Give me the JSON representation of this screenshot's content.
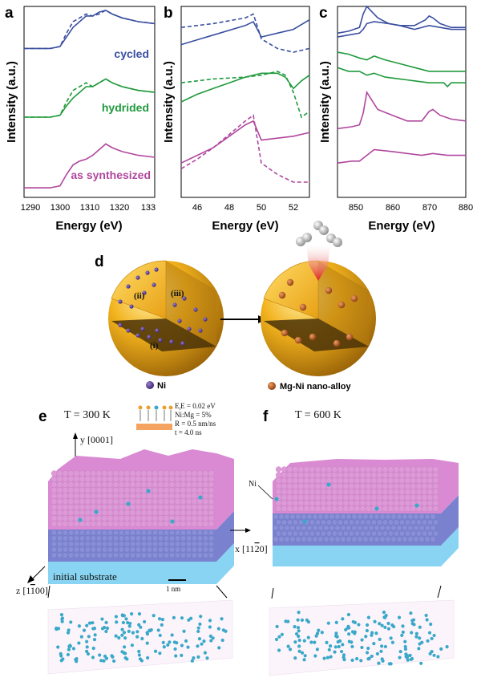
{
  "panels": {
    "a": "a",
    "b": "b",
    "c": "c",
    "d": "d",
    "e": "e",
    "f": "f"
  },
  "colors": {
    "cycled": "#3a4fa0",
    "hydrided": "#1f9a3c",
    "as_synth": "#b0479e",
    "shell": "#f0b020",
    "ni": "#5a3a9c",
    "mgni": "#c06020",
    "mg_atom": "#de9ad8",
    "substrate_atom": "#8a90d8",
    "substrate": "#88d4f2",
    "ni_atom": "#3aa8c8"
  },
  "chart_data": [
    {
      "panel": "a",
      "type": "line",
      "xlabel": "Energy (eV)",
      "ylabel": "Intensity (a.u.)",
      "xticks": [
        "1290",
        "1300",
        "1310",
        "1320",
        "133"
      ],
      "xlim": [
        1290,
        1330
      ],
      "series": [
        {
          "name": "cycled",
          "style": "solid",
          "x": [
            1290,
            1298,
            1301,
            1303,
            1305,
            1307,
            1309,
            1311,
            1313,
            1315,
            1317,
            1320,
            1325,
            1330
          ],
          "y": [
            0.78,
            0.78,
            0.79,
            0.84,
            0.89,
            0.92,
            0.95,
            0.95,
            0.97,
            0.98,
            0.96,
            0.94,
            0.92,
            0.91
          ]
        },
        {
          "name": "cycled-dashed",
          "style": "dashed",
          "x": [
            1290,
            1298,
            1301,
            1303,
            1305,
            1307,
            1309,
            1311,
            1313,
            1315,
            1317,
            1320,
            1325,
            1330
          ],
          "y": [
            0.78,
            0.78,
            0.79,
            0.86,
            0.92,
            0.94,
            0.96,
            0.95,
            0.96,
            0.98,
            0.96,
            0.94,
            0.92,
            0.91
          ]
        },
        {
          "name": "hydrided",
          "style": "solid",
          "x": [
            1290,
            1298,
            1301,
            1303,
            1305,
            1307,
            1309,
            1311,
            1313,
            1315,
            1317,
            1320,
            1325,
            1330
          ],
          "y": [
            0.42,
            0.42,
            0.43,
            0.48,
            0.52,
            0.55,
            0.58,
            0.58,
            0.6,
            0.62,
            0.6,
            0.58,
            0.56,
            0.55
          ]
        },
        {
          "name": "hydrided-dashed",
          "style": "dashed",
          "x": [
            1290,
            1298,
            1301,
            1303,
            1305,
            1307,
            1309,
            1311,
            1313,
            1315,
            1317,
            1320,
            1325,
            1330
          ],
          "y": [
            0.42,
            0.42,
            0.43,
            0.5,
            0.56,
            0.58,
            0.6,
            0.58,
            0.6,
            0.62,
            0.6,
            0.58,
            0.56,
            0.55
          ]
        },
        {
          "name": "as synthesized",
          "style": "solid",
          "x": [
            1290,
            1298,
            1301,
            1303,
            1305,
            1307,
            1309,
            1311,
            1313,
            1315,
            1317,
            1320,
            1325,
            1330
          ],
          "y": [
            0.05,
            0.05,
            0.06,
            0.12,
            0.17,
            0.19,
            0.2,
            0.22,
            0.25,
            0.28,
            0.26,
            0.24,
            0.22,
            0.21
          ]
        }
      ],
      "labels": [
        "cycled",
        "hydrided",
        "as synthesized"
      ]
    },
    {
      "panel": "b",
      "type": "line",
      "xlabel": "Energy (eV)",
      "ylabel": "Intensity (a.u.)",
      "xticks": [
        "46",
        "48",
        "50",
        "52"
      ],
      "xlim": [
        45,
        53
      ],
      "series": [
        {
          "name": "cycled",
          "style": "solid",
          "x": [
            45,
            47,
            49,
            49.5,
            50,
            51,
            52,
            53
          ],
          "y": [
            0.8,
            0.85,
            0.9,
            0.92,
            0.84,
            0.86,
            0.88,
            0.93
          ]
        },
        {
          "name": "cycled-dashed",
          "style": "dashed",
          "x": [
            45,
            47,
            49,
            49.5,
            50,
            51,
            52,
            53
          ],
          "y": [
            0.89,
            0.91,
            0.94,
            0.96,
            0.83,
            0.78,
            0.76,
            0.78
          ]
        },
        {
          "name": "hydrided",
          "style": "solid",
          "x": [
            45,
            46,
            47,
            48,
            49,
            50,
            51,
            51.5,
            52,
            52.5,
            53
          ],
          "y": [
            0.5,
            0.54,
            0.57,
            0.6,
            0.63,
            0.65,
            0.65,
            0.63,
            0.57,
            0.61,
            0.64
          ]
        },
        {
          "name": "hydrided-dashed",
          "style": "dashed",
          "x": [
            45,
            47,
            49,
            50,
            51,
            51.5,
            52,
            52.5,
            53
          ],
          "y": [
            0.6,
            0.62,
            0.63,
            0.64,
            0.66,
            0.64,
            0.55,
            0.42,
            0.45
          ]
        },
        {
          "name": "as synthesized",
          "style": "solid",
          "x": [
            45,
            46,
            47,
            48,
            49,
            49.5,
            50,
            51,
            52,
            53
          ],
          "y": [
            0.18,
            0.22,
            0.26,
            0.32,
            0.38,
            0.4,
            0.3,
            0.31,
            0.32,
            0.34
          ]
        },
        {
          "name": "as synthesized-dashed",
          "style": "dashed",
          "x": [
            45,
            46,
            47,
            48,
            49,
            49.5,
            50,
            51,
            52,
            53
          ],
          "y": [
            0.15,
            0.2,
            0.26,
            0.33,
            0.4,
            0.43,
            0.18,
            0.12,
            0.08,
            0.08
          ]
        }
      ]
    },
    {
      "panel": "c",
      "type": "line",
      "xlabel": "Energy (eV)",
      "ylabel": "Intensity (a.u.)",
      "xticks": [
        "850",
        "860",
        "870",
        "880"
      ],
      "xlim": [
        845,
        880
      ],
      "series": [
        {
          "name": "cycled",
          "style": "solid",
          "x": [
            845,
            848,
            851,
            852,
            853,
            854,
            856,
            859,
            862,
            866,
            869,
            870,
            871,
            873,
            876,
            880
          ],
          "y": [
            0.86,
            0.87,
            0.89,
            0.96,
            1.0,
            0.98,
            0.94,
            0.91,
            0.9,
            0.9,
            0.93,
            0.95,
            0.94,
            0.91,
            0.89,
            0.89
          ]
        },
        {
          "name": "cycled-2",
          "style": "solid",
          "x": [
            845,
            848,
            851,
            852,
            853,
            855,
            859,
            862,
            866,
            870,
            873,
            876,
            880
          ],
          "y": [
            0.84,
            0.85,
            0.86,
            0.88,
            0.91,
            0.92,
            0.91,
            0.9,
            0.88,
            0.9,
            0.89,
            0.88,
            0.88
          ]
        },
        {
          "name": "hydrided",
          "style": "solid",
          "x": [
            845,
            848,
            851,
            853,
            855,
            858,
            862,
            866,
            870,
            874,
            876,
            880
          ],
          "y": [
            0.76,
            0.75,
            0.73,
            0.72,
            0.74,
            0.72,
            0.7,
            0.68,
            0.66,
            0.66,
            0.66,
            0.66
          ]
        },
        {
          "name": "hydrided-2",
          "style": "solid",
          "x": [
            845,
            848,
            851,
            853,
            855,
            858,
            862,
            866,
            870,
            874,
            875,
            876,
            880
          ],
          "y": [
            0.68,
            0.66,
            0.66,
            0.64,
            0.65,
            0.63,
            0.62,
            0.61,
            0.6,
            0.6,
            0.58,
            0.6,
            0.6
          ]
        },
        {
          "name": "as synthesized",
          "style": "solid",
          "x": [
            845,
            849,
            851,
            852,
            853,
            854,
            856,
            860,
            864,
            868,
            870,
            871,
            873,
            876,
            880
          ],
          "y": [
            0.36,
            0.37,
            0.38,
            0.44,
            0.55,
            0.52,
            0.46,
            0.43,
            0.4,
            0.4,
            0.45,
            0.46,
            0.43,
            0.41,
            0.4
          ]
        },
        {
          "name": "as synthesized-2",
          "style": "solid",
          "x": [
            845,
            849,
            851,
            853,
            855,
            860,
            864,
            868,
            871,
            875,
            880
          ],
          "y": [
            0.18,
            0.19,
            0.19,
            0.22,
            0.25,
            0.24,
            0.23,
            0.22,
            0.23,
            0.22,
            0.22
          ]
        }
      ]
    }
  ],
  "schematic": {
    "roman": [
      "(i)",
      "(ii)",
      "(iii)"
    ],
    "h2": "H",
    "h2_sub": "2",
    "legend_ni": "Ni",
    "legend_mgni": "Mg-Ni nano-alloy"
  },
  "sim_e": {
    "temp": "T = 300 K",
    "params": [
      "E = 0.02 eV",
      "Ni:Mg = 5%",
      "R = 0.5 nm/ns",
      "t = 4.0 ns"
    ],
    "param_sub": "i",
    "y_axis": "y [0001]",
    "x_axis": "x [11",
    "x_axis_bar": "2",
    "x_axis_end": "0]",
    "z_axis": "z [1",
    "z_axis_bar": "1",
    "z_axis_end": "00]",
    "mg_label": "Mg",
    "substrate": "initial substrate",
    "scale": "1 nm"
  },
  "sim_f": {
    "temp": "T = 600 K",
    "ni_label": "Ni"
  }
}
